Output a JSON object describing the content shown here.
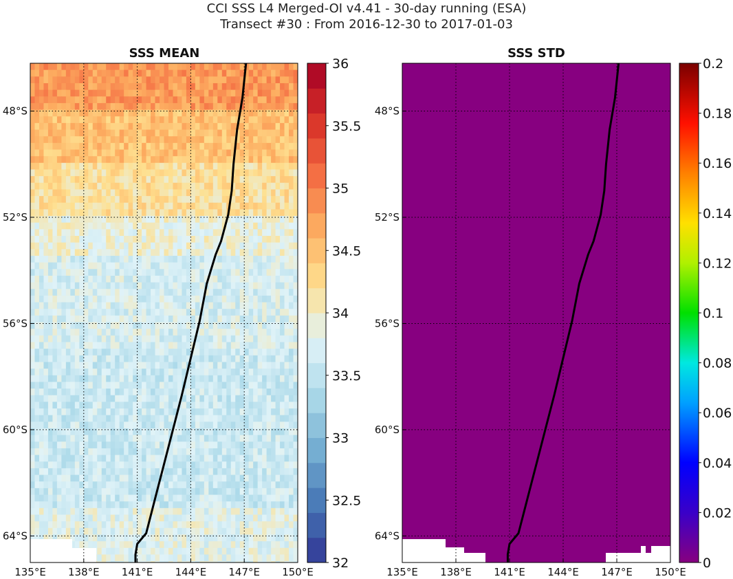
{
  "title": {
    "line1": "CCI SSS L4 Merged-OI v4.41 - 30-day running (ESA)",
    "line2": "Transect #30 : From 2016-12-30 to 2017-01-03"
  },
  "colors": {
    "std_field": "#870080",
    "transect": "#000000",
    "no_data": "#ffffff"
  },
  "chart_data": [
    {
      "type": "heatmap",
      "title": "SSS MEAN",
      "xlim": [
        135,
        150
      ],
      "ylim": [
        -65,
        -46.2
      ],
      "x_ticks": [
        135,
        138,
        141,
        144,
        147,
        150
      ],
      "x_tick_labels": [
        "135°E",
        "138°E",
        "141°E",
        "144°E",
        "147°E",
        "150°E"
      ],
      "y_ticks": [
        -48,
        -52,
        -56,
        -60,
        -64
      ],
      "y_tick_labels": [
        "48°S",
        "52°S",
        "56°S",
        "60°S",
        "64°S"
      ],
      "grid": true,
      "colorbar": {
        "min": 32,
        "max": 36,
        "ticks": [
          32,
          32.5,
          33,
          33.5,
          34,
          34.5,
          35,
          35.5,
          36
        ],
        "tick_labels": [
          "32",
          "32.5",
          "33",
          "33.5",
          "34",
          "34.5",
          "35",
          "35.5",
          "36"
        ],
        "colormap": "RdYlBu_r",
        "levels": 20
      },
      "approx_field_bands": [
        {
          "lat_from": -46.2,
          "lat_to": -48,
          "sss": 34.8
        },
        {
          "lat_from": -48,
          "lat_to": -50,
          "sss": 34.5
        },
        {
          "lat_from": -50,
          "lat_to": -52,
          "sss": 34.2
        },
        {
          "lat_from": -52,
          "lat_to": -53.5,
          "sss": 33.9
        },
        {
          "lat_from": -53.5,
          "lat_to": -57,
          "sss": 33.7
        },
        {
          "lat_from": -57,
          "lat_to": -63,
          "sss": 33.6
        },
        {
          "lat_from": -63,
          "lat_to": -65,
          "sss": 33.8
        }
      ]
    },
    {
      "type": "heatmap",
      "title": "SSS STD",
      "xlim": [
        135,
        150
      ],
      "ylim": [
        -65,
        -46.2
      ],
      "x_ticks": [
        135,
        138,
        141,
        144,
        147,
        150
      ],
      "x_tick_labels": [
        "135°E",
        "138°E",
        "141°E",
        "144°E",
        "147°E",
        "150°E"
      ],
      "y_ticks": [
        -48,
        -52,
        -56,
        -60,
        -64
      ],
      "y_tick_labels": [
        "48°S",
        "52°S",
        "56°S",
        "60°S",
        "64°S"
      ],
      "grid": true,
      "field_value": 0,
      "colorbar": {
        "min": 0,
        "max": 0.2,
        "ticks": [
          0,
          0.02,
          0.04,
          0.06,
          0.08,
          0.1,
          0.12,
          0.14,
          0.16,
          0.18,
          0.2
        ],
        "tick_labels": [
          "0",
          "0.02",
          "0.04",
          "0.06",
          "0.08",
          "0.1",
          "0.12",
          "0.14",
          "0.16",
          "0.18",
          "0.2"
        ],
        "colormap": "jet"
      }
    }
  ],
  "transect": {
    "lon": [
      147.1,
      146.9,
      146.6,
      146.4,
      146.3,
      146.1,
      145.9,
      145.7,
      145.4,
      144.9,
      144.5,
      144.0,
      143.5,
      143.0,
      142.5,
      142.0,
      141.5,
      141.0,
      140.9,
      140.9
    ],
    "lat": [
      -46.2,
      -47.5,
      -48.7,
      -50.0,
      -51.0,
      -51.9,
      -52.4,
      -52.9,
      -53.4,
      -54.5,
      -55.9,
      -57.3,
      -58.7,
      -60.0,
      -61.3,
      -62.6,
      -63.9,
      -64.3,
      -64.7,
      -65.0
    ]
  }
}
